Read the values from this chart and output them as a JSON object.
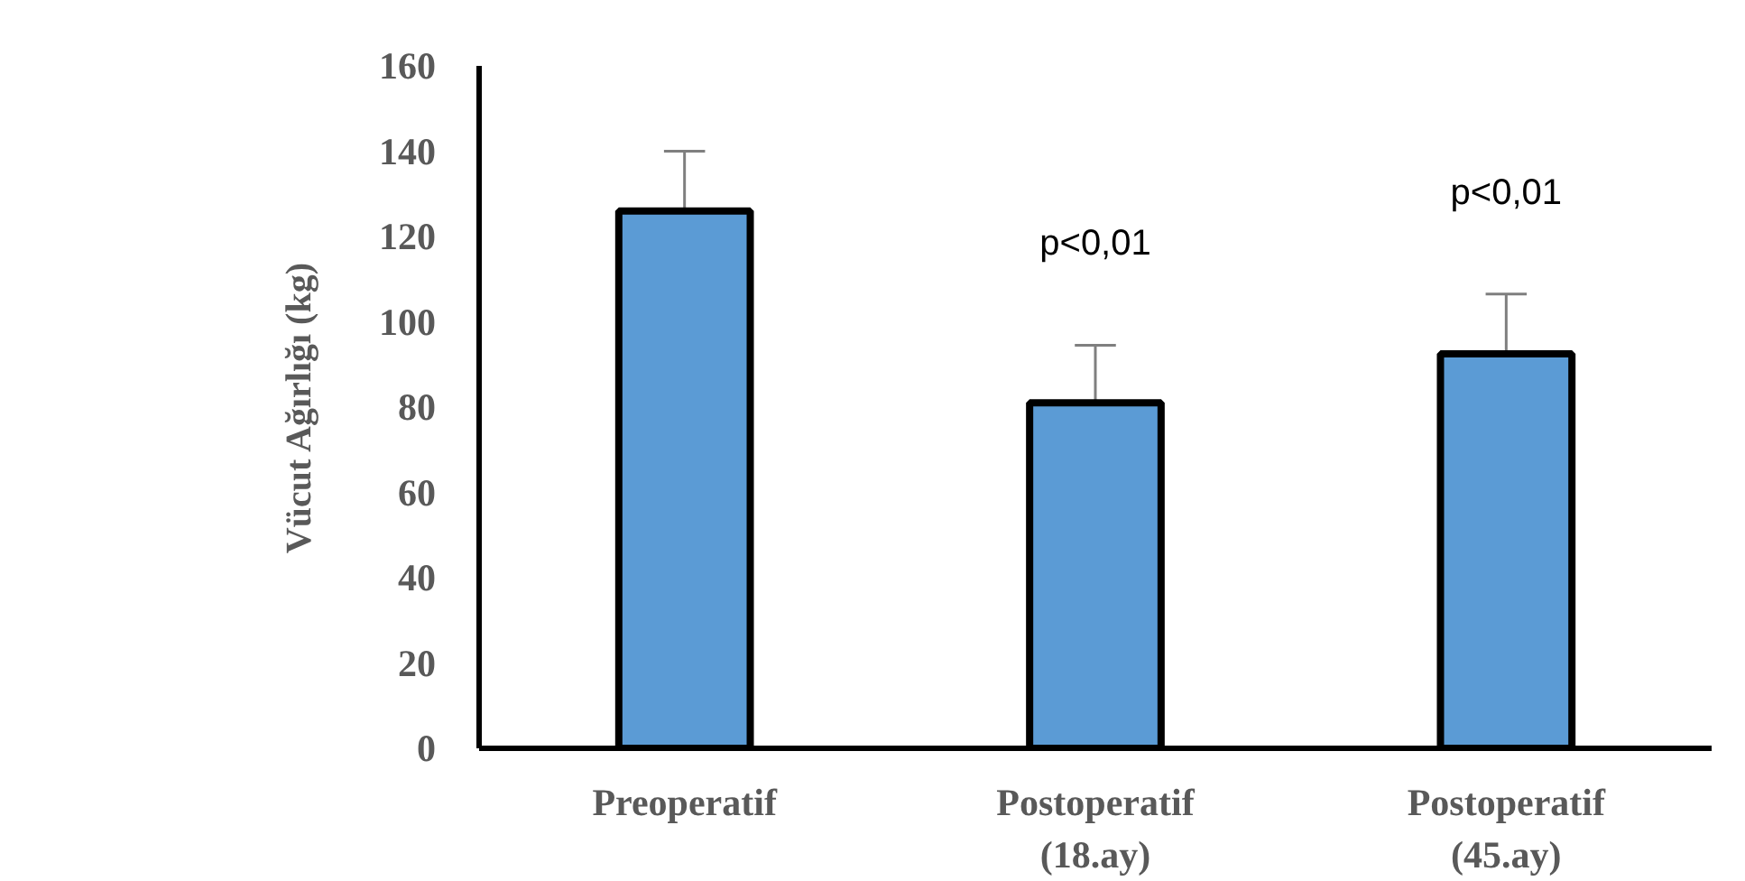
{
  "chart_data": {
    "type": "bar",
    "ylabel": "Vücut Ağırlığı (kg)",
    "categories": [
      "Preoperatif",
      "Postoperatif\n(18.ay)",
      "Postoperatif\n(45.ay)"
    ],
    "values": [
      126,
      81,
      92.5
    ],
    "errors": [
      [
        126,
        140
      ],
      [
        81,
        94.5
      ],
      [
        92.5,
        106.5
      ]
    ],
    "color": "#5b9bd5",
    "ylim": [
      0,
      160
    ],
    "yticks": [
      0,
      20,
      40,
      60,
      80,
      100,
      120,
      140,
      160
    ],
    "grid": false,
    "annotations": [
      "p<0,01",
      "p<0,01"
    ]
  }
}
